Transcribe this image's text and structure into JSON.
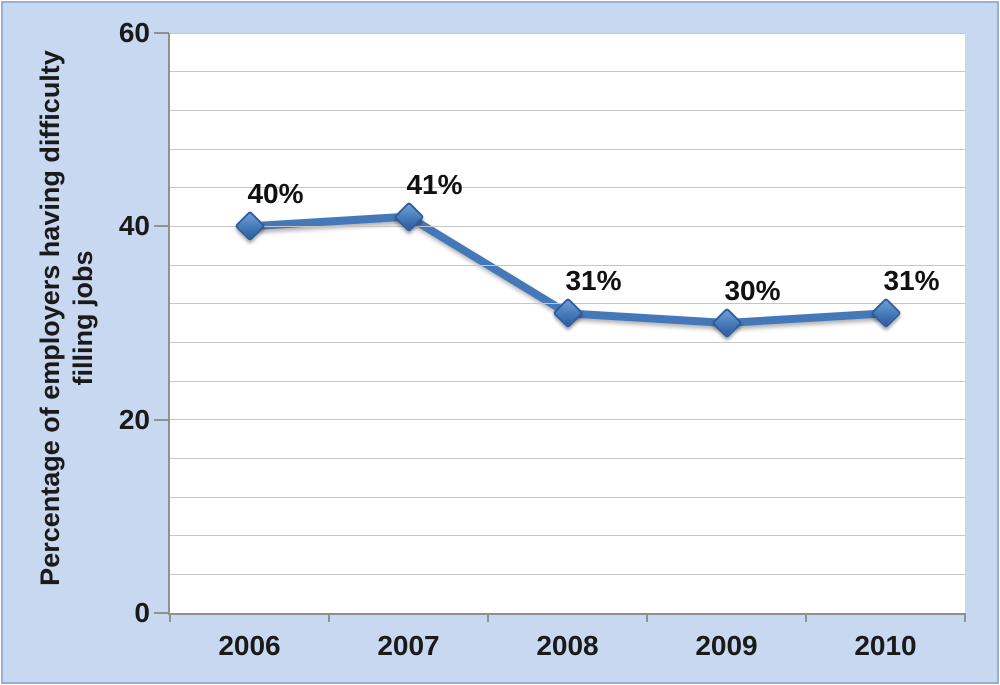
{
  "chart_data": {
    "type": "line",
    "title": "",
    "categories": [
      "2006",
      "2007",
      "2008",
      "2009",
      "2010"
    ],
    "series": [
      {
        "name": "Percentage of employers having difficulty filling jobs",
        "values": [
          40,
          41,
          31,
          30,
          31
        ]
      }
    ],
    "data_labels": [
      "40%",
      "41%",
      "31%",
      "30%",
      "31%"
    ],
    "xlabel": "",
    "ylabel": "Percentage of employers having difficulty filling jobs",
    "ylabel_line1": "Percentage of employers having difficulty",
    "ylabel_line2": "filling jobs",
    "ylim": [
      0,
      60
    ],
    "y_major_unit": 20,
    "y_minor_unit": 4,
    "y_tick_labels": [
      "0",
      "20",
      "40",
      "60"
    ],
    "grid": "horizontal-minor-on",
    "legend": "none",
    "colors": {
      "line": "#4478B9",
      "marker_fill": "#3E74B4",
      "marker_border": "#2B5C9C",
      "background": "#C8D8F0",
      "frame_border": "#94B0D7",
      "plot_background": "#FFFFFF",
      "gridline": "#C6C6C6",
      "axis_line": "#909090",
      "text": "#1A1A1A"
    }
  }
}
